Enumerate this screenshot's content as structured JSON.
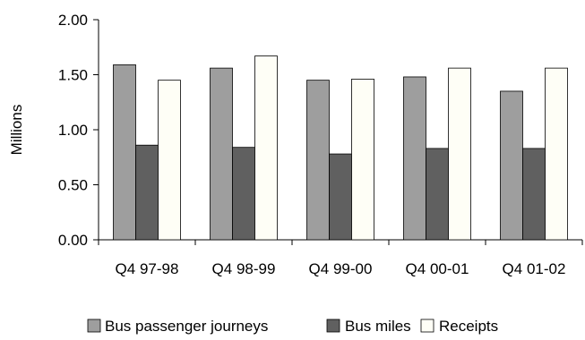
{
  "chart_data": {
    "type": "bar",
    "categories": [
      "Q4 97-98",
      "Q4 98-99",
      "Q4 99-00",
      "Q4 00-01",
      "Q4 01-02"
    ],
    "series": [
      {
        "name": "Bus passenger journeys",
        "values": [
          1.59,
          1.56,
          1.45,
          1.48,
          1.35
        ],
        "color": "#9e9e9e"
      },
      {
        "name": "Bus miles",
        "values": [
          0.86,
          0.84,
          0.78,
          0.83,
          0.83
        ],
        "color": "#606060"
      },
      {
        "name": "Receipts",
        "values": [
          1.45,
          1.67,
          1.46,
          1.56,
          1.56
        ],
        "color": "#fefef6"
      }
    ],
    "ylabel": "Millions",
    "xlabel": "",
    "ylim": [
      0,
      2.0
    ],
    "yticks": [
      "0.00",
      "0.50",
      "1.00",
      "1.50",
      "2.00"
    ],
    "legend_position": "bottom",
    "grid": false
  }
}
